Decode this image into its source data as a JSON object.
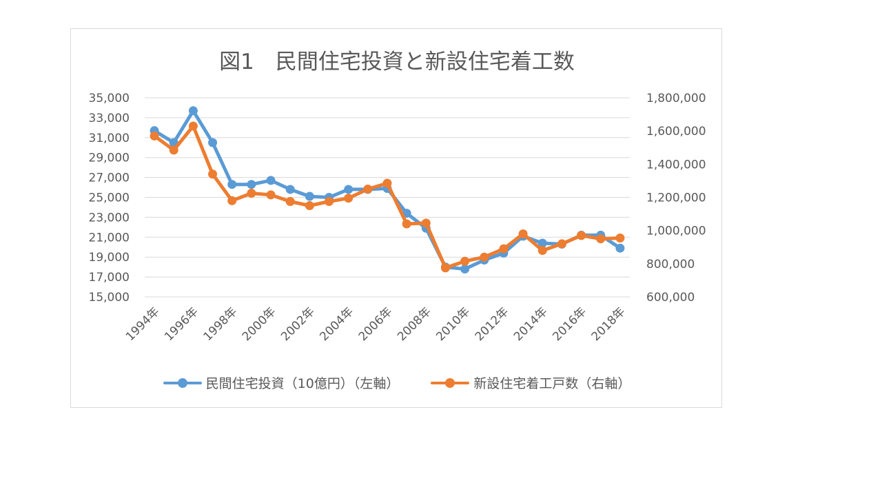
{
  "chart_data": {
    "type": "line",
    "title": "図1　民間住宅投資と新設住宅着工数",
    "x": [
      "1994年",
      "1995年",
      "1996年",
      "1997年",
      "1998年",
      "1999年",
      "2000年",
      "2001年",
      "2002年",
      "2003年",
      "2004年",
      "2005年",
      "2006年",
      "2007年",
      "2008年",
      "2009年",
      "2010年",
      "2011年",
      "2012年",
      "2013年",
      "2014年",
      "2015年",
      "2016年",
      "2017年",
      "2018年"
    ],
    "x_tick_labels": [
      "1994年",
      "1996年",
      "1998年",
      "2000年",
      "2002年",
      "2004年",
      "2006年",
      "2008年",
      "2010年",
      "2012年",
      "2014年",
      "2016年",
      "2018年"
    ],
    "y_left": {
      "range": [
        15000,
        35000
      ],
      "tick_labels": [
        "35,000",
        "33,000",
        "31,000",
        "29,000",
        "27,000",
        "25,000",
        "23,000",
        "21,000",
        "19,000",
        "17,000",
        "15,000"
      ]
    },
    "y_right": {
      "range": [
        600000,
        1800000
      ],
      "tick_labels": [
        "1,800,000",
        "1,600,000",
        "1,400,000",
        "1,200,000",
        "1,000,000",
        "800,000",
        "600,000"
      ]
    },
    "grid": true,
    "legend_position": "bottom",
    "series": [
      {
        "name": "民間住宅投資（10億円）（左軸）",
        "axis": "left",
        "color": "#5b9bd5",
        "values": [
          31700,
          30500,
          33700,
          30500,
          26300,
          26300,
          26700,
          25800,
          25100,
          25000,
          25800,
          25800,
          25900,
          23400,
          21900,
          18000,
          17800,
          18700,
          19400,
          21100,
          20400,
          20300,
          21200,
          21200,
          19900
        ]
      },
      {
        "name": "新設住宅着工戸数（右軸）",
        "axis": "right",
        "color": "#ed7d31",
        "values": [
          1570000,
          1485000,
          1630000,
          1340000,
          1180000,
          1225000,
          1215000,
          1175000,
          1150000,
          1175000,
          1195000,
          1250000,
          1285000,
          1040000,
          1045000,
          775000,
          815000,
          840000,
          890000,
          980000,
          880000,
          920000,
          970000,
          950000,
          955000
        ]
      }
    ]
  }
}
